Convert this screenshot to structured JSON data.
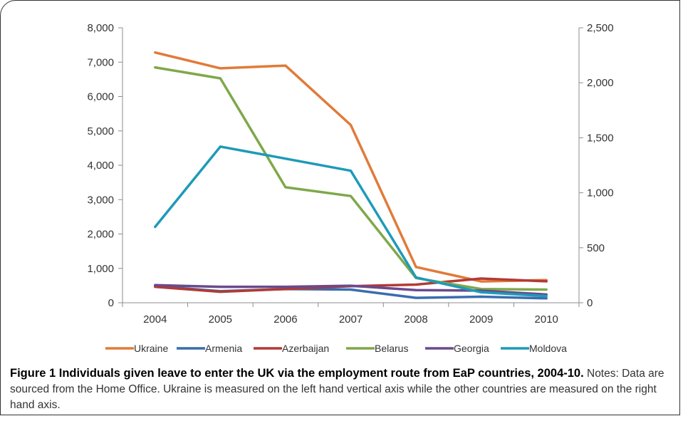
{
  "chart_data": {
    "type": "line",
    "categories": [
      "2004",
      "2005",
      "2006",
      "2007",
      "2008",
      "2009",
      "2010"
    ],
    "left_axis": {
      "ylim": [
        0,
        8000
      ],
      "ticks": [
        0,
        1000,
        2000,
        3000,
        4000,
        5000,
        6000,
        7000,
        8000
      ],
      "tick_labels": [
        "0",
        "1,000",
        "2,000",
        "3,000",
        "4,000",
        "5,000",
        "6,000",
        "7,000",
        "8,000"
      ]
    },
    "right_axis": {
      "ylim": [
        0,
        2500
      ],
      "ticks": [
        0,
        500,
        1000,
        1500,
        2000,
        2500
      ],
      "tick_labels": [
        "0",
        "500",
        "1,000",
        "1,500",
        "2,000",
        "2,500"
      ]
    },
    "series": [
      {
        "name": "Ukraine",
        "axis": "left",
        "color": "#E07B39",
        "values": [
          7280,
          6820,
          6900,
          5170,
          1040,
          620,
          660
        ]
      },
      {
        "name": "Armenia",
        "axis": "right",
        "color": "#3A6DAE",
        "values": [
          150,
          105,
          125,
          120,
          45,
          55,
          40
        ]
      },
      {
        "name": "Azerbaijan",
        "axis": "right",
        "color": "#B23A36",
        "values": [
          145,
          100,
          125,
          150,
          165,
          220,
          195
        ]
      },
      {
        "name": "Belarus",
        "axis": "right",
        "color": "#7FA84A",
        "values": [
          2140,
          2040,
          1050,
          970,
          225,
          125,
          120
        ]
      },
      {
        "name": "Georgia",
        "axis": "right",
        "color": "#6A4A8C",
        "values": [
          160,
          145,
          145,
          155,
          115,
          110,
          75
        ]
      },
      {
        "name": "Moldova",
        "axis": "right",
        "color": "#1E9AB8",
        "values": [
          690,
          1420,
          1310,
          1200,
          230,
          95,
          60
        ]
      }
    ],
    "legend_position": "bottom",
    "grid": false
  },
  "caption": {
    "title": "Figure 1 Individuals given leave to enter the UK via the employment route from EaP countries, 2004-10.",
    "notes": " Notes: Data are sourced from the Home Office. Ukraine is measured on the left hand vertical axis while the other countries are measured on the right hand axis."
  }
}
